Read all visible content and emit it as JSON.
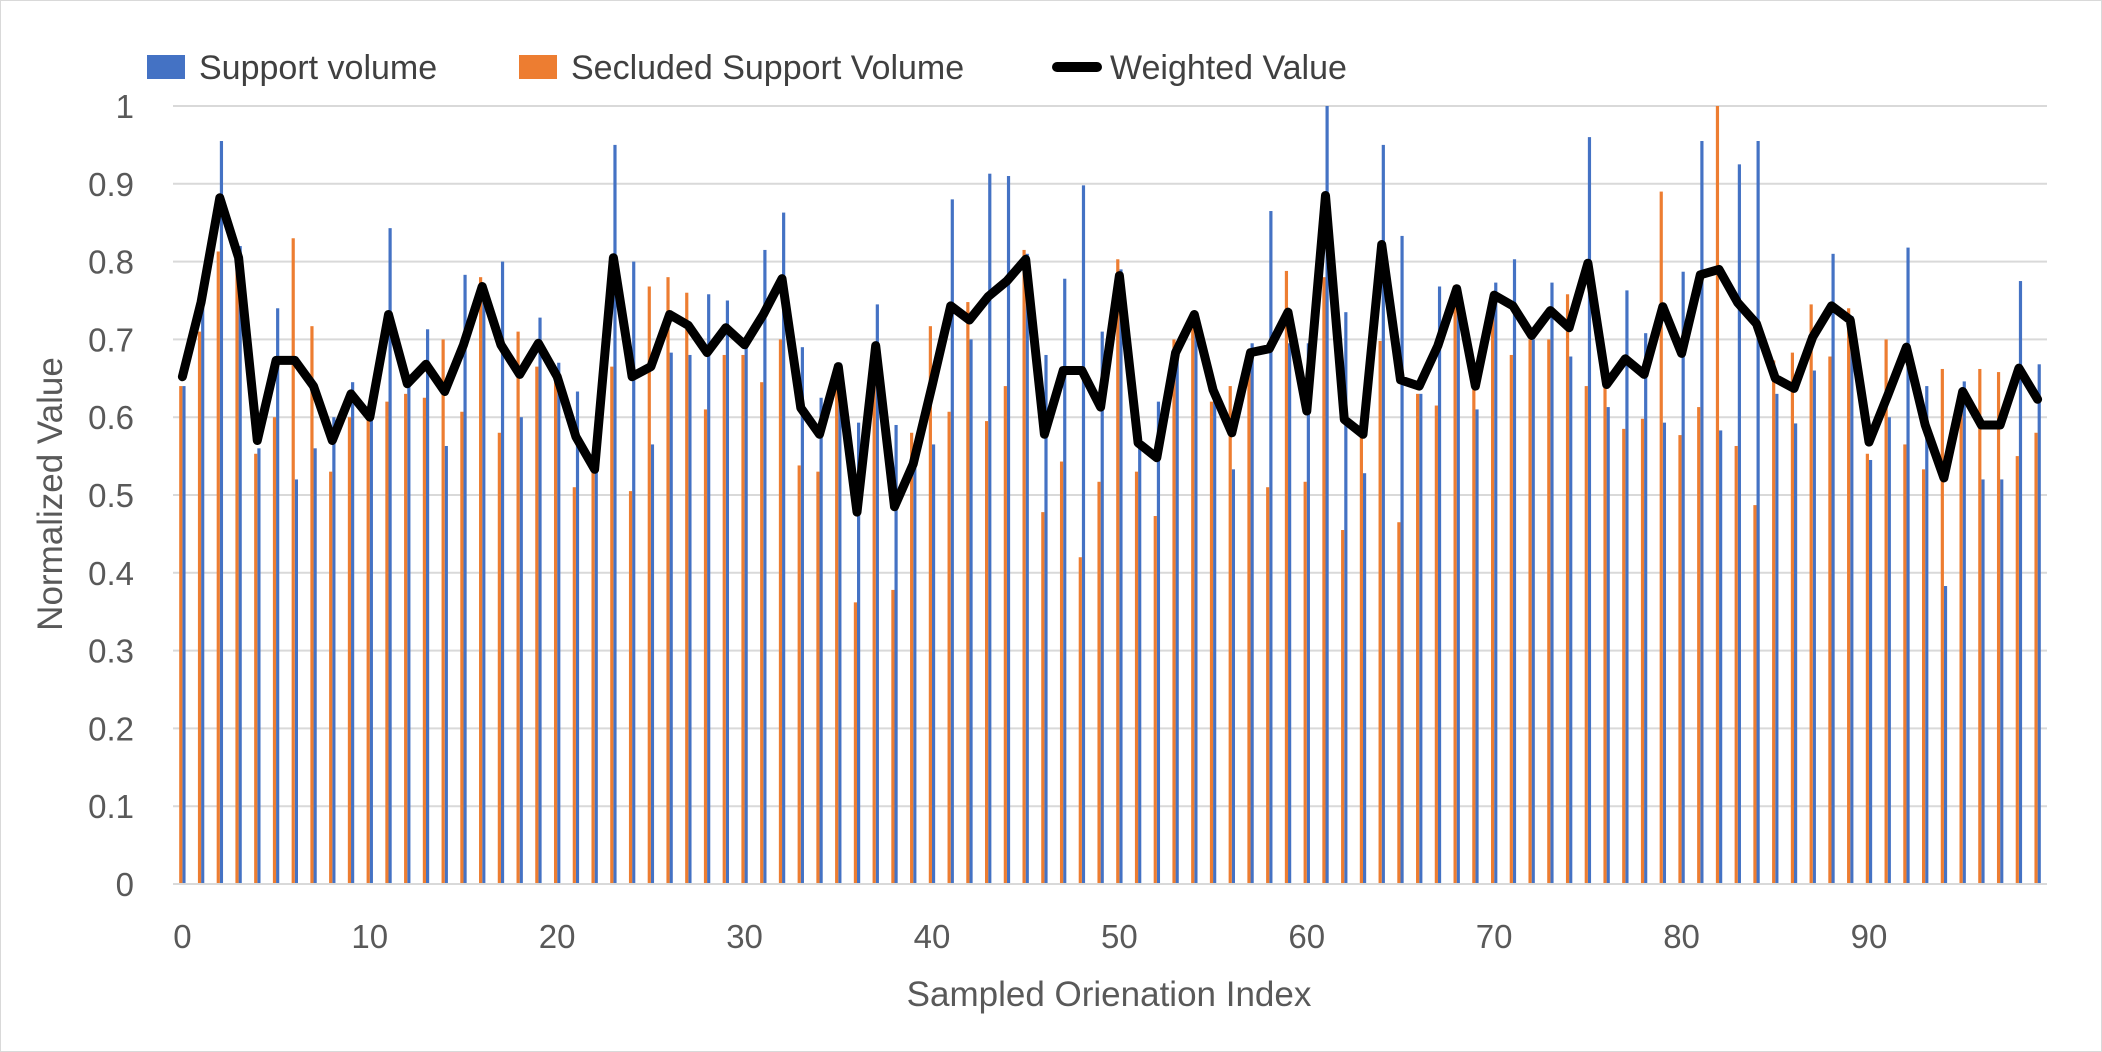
{
  "chart_data": {
    "type": "bar",
    "title": "",
    "xlabel": "Sampled Orienation Index",
    "ylabel": "Normalized Value",
    "ylim": [
      0,
      1
    ],
    "yticks": [
      0,
      0.1,
      0.2,
      0.3,
      0.4,
      0.5,
      0.6,
      0.7,
      0.8,
      0.9,
      1
    ],
    "ytick_labels": [
      "0",
      "0.1",
      "0.2",
      "0.3",
      "0.4",
      "0.5",
      "0.6",
      "0.7",
      "0.8",
      "0.9",
      "1"
    ],
    "xticks": [
      0,
      10,
      20,
      30,
      40,
      50,
      60,
      70,
      80,
      90
    ],
    "xtick_labels": [
      "0",
      "10",
      "20",
      "30",
      "40",
      "50",
      "60",
      "70",
      "80",
      "90"
    ],
    "grid": true,
    "legend_position": "top-left",
    "x": [
      0,
      1,
      2,
      3,
      4,
      5,
      6,
      7,
      8,
      9,
      10,
      11,
      12,
      13,
      14,
      15,
      16,
      17,
      18,
      19,
      20,
      21,
      22,
      23,
      24,
      25,
      26,
      27,
      28,
      29,
      30,
      31,
      32,
      33,
      34,
      35,
      36,
      37,
      38,
      39,
      40,
      41,
      42,
      43,
      44,
      45,
      46,
      47,
      48,
      49,
      50,
      51,
      52,
      53,
      54,
      55,
      56,
      57,
      58,
      59,
      60,
      61,
      62,
      63,
      64,
      65,
      66,
      67,
      68,
      69,
      70,
      71,
      72,
      73,
      74,
      75,
      76,
      77,
      78,
      79,
      80,
      81,
      82,
      83,
      84,
      85,
      86,
      87,
      88,
      89,
      90,
      91,
      92,
      93,
      94,
      95,
      96,
      97,
      98,
      99
    ],
    "series": [
      {
        "name": "Support volume",
        "kind": "bar",
        "color": "#4472C4",
        "values": [
          0.64,
          0.78,
          0.955,
          0.82,
          0.56,
          0.74,
          0.52,
          0.56,
          0.6,
          0.645,
          0.62,
          0.843,
          0.64,
          0.713,
          0.563,
          0.783,
          0.76,
          0.8,
          0.6,
          0.728,
          0.67,
          0.633,
          0.55,
          0.95,
          0.8,
          0.565,
          0.683,
          0.68,
          0.758,
          0.75,
          0.7,
          0.815,
          0.863,
          0.69,
          0.625,
          0.67,
          0.593,
          0.745,
          0.59,
          0.55,
          0.565,
          0.88,
          0.7,
          0.913,
          0.91,
          0.81,
          0.68,
          0.778,
          0.898,
          0.71,
          0.79,
          0.57,
          0.62,
          0.693,
          0.73,
          0.64,
          0.533,
          0.695,
          0.865,
          0.695,
          0.695,
          1.0,
          0.735,
          0.528,
          0.95,
          0.833,
          0.63,
          0.768,
          0.76,
          0.61,
          0.773,
          0.803,
          0.7,
          0.773,
          0.678,
          0.96,
          0.613,
          0.763,
          0.708,
          0.593,
          0.787,
          0.955,
          0.583,
          0.925,
          0.955,
          0.63,
          0.592,
          0.66,
          0.81,
          0.73,
          0.545,
          0.6,
          0.818,
          0.64,
          0.383,
          0.646,
          0.52,
          0.52,
          0.775,
          0.668
        ]
      },
      {
        "name": "Secluded Support Volume",
        "kind": "bar",
        "color": "#ED7D31",
        "values": [
          0.64,
          0.71,
          0.813,
          0.8,
          0.553,
          0.6,
          0.83,
          0.717,
          0.53,
          0.6,
          0.6,
          0.62,
          0.63,
          0.625,
          0.7,
          0.607,
          0.78,
          0.58,
          0.71,
          0.665,
          0.648,
          0.51,
          0.53,
          0.665,
          0.505,
          0.768,
          0.78,
          0.76,
          0.61,
          0.68,
          0.68,
          0.645,
          0.7,
          0.538,
          0.53,
          0.66,
          0.362,
          0.65,
          0.378,
          0.58,
          0.717,
          0.607,
          0.748,
          0.595,
          0.64,
          0.815,
          0.478,
          0.543,
          0.42,
          0.517,
          0.803,
          0.53,
          0.473,
          0.7,
          0.72,
          0.62,
          0.64,
          0.67,
          0.51,
          0.788,
          0.517,
          0.78,
          0.455,
          0.575,
          0.698,
          0.465,
          0.63,
          0.615,
          0.77,
          0.648,
          0.75,
          0.68,
          0.7,
          0.7,
          0.758,
          0.64,
          0.65,
          0.585,
          0.598,
          0.89,
          0.577,
          0.613,
          1.0,
          0.563,
          0.487,
          0.673,
          0.683,
          0.745,
          0.678,
          0.74,
          0.553,
          0.7,
          0.565,
          0.533,
          0.662,
          0.62,
          0.662,
          0.658,
          0.55,
          0.58
        ]
      },
      {
        "name": "Weighted Value",
        "kind": "line",
        "color": "#000000",
        "values": [
          0.652,
          0.748,
          0.882,
          0.805,
          0.57,
          0.673,
          0.673,
          0.64,
          0.57,
          0.63,
          0.6,
          0.732,
          0.643,
          0.668,
          0.633,
          0.693,
          0.768,
          0.693,
          0.655,
          0.695,
          0.652,
          0.575,
          0.533,
          0.805,
          0.652,
          0.665,
          0.732,
          0.718,
          0.683,
          0.715,
          0.693,
          0.732,
          0.778,
          0.612,
          0.578,
          0.665,
          0.478,
          0.692,
          0.485,
          0.54,
          0.64,
          0.743,
          0.725,
          0.755,
          0.775,
          0.803,
          0.578,
          0.66,
          0.66,
          0.613,
          0.782,
          0.567,
          0.548,
          0.683,
          0.732,
          0.635,
          0.58,
          0.683,
          0.688,
          0.735,
          0.608,
          0.885,
          0.597,
          0.578,
          0.822,
          0.648,
          0.64,
          0.692,
          0.765,
          0.64,
          0.757,
          0.743,
          0.705,
          0.737,
          0.715,
          0.798,
          0.642,
          0.675,
          0.655,
          0.742,
          0.682,
          0.783,
          0.79,
          0.747,
          0.72,
          0.65,
          0.637,
          0.703,
          0.743,
          0.725,
          0.568,
          0.628,
          0.69,
          0.59,
          0.522,
          0.633,
          0.59,
          0.59,
          0.663,
          0.623
        ]
      }
    ]
  }
}
